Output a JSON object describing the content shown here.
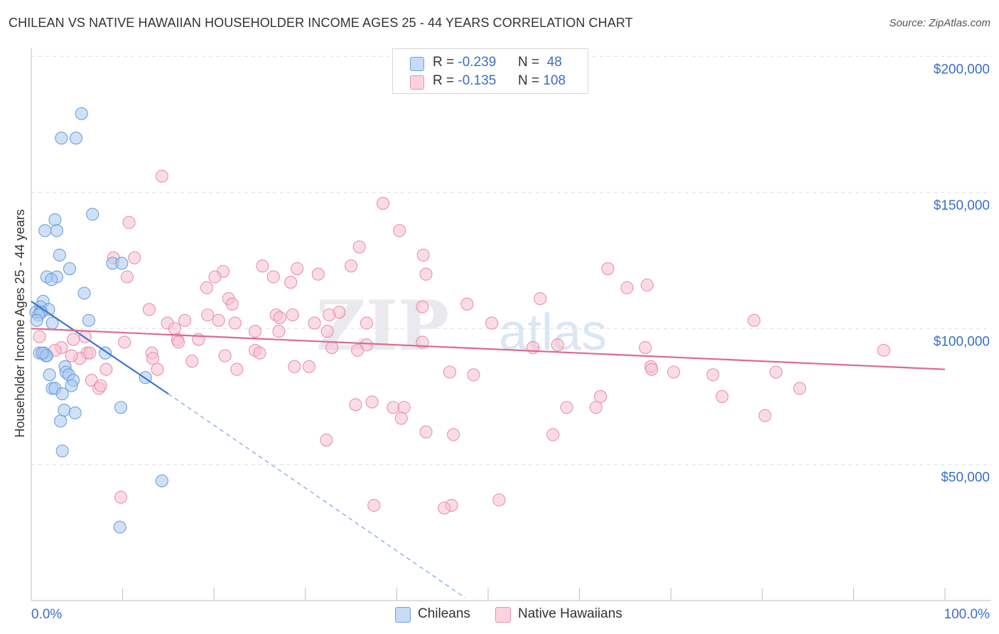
{
  "header": {
    "title": "CHILEAN VS NATIVE HAWAIIAN HOUSEHOLDER INCOME AGES 25 - 44 YEARS CORRELATION CHART",
    "source": "Source: ZipAtlas.com"
  },
  "watermark": {
    "text_zip": "ZIP",
    "text_atlas": "atlas"
  },
  "legend": {
    "rows": [
      {
        "r_label": "R =",
        "r_value": "-0.239",
        "n_label": "N =",
        "n_value": "48"
      },
      {
        "r_label": "R =",
        "r_value": "-0.135",
        "n_label": "N =",
        "n_value": "108"
      }
    ]
  },
  "bottom_legend": {
    "series1": "Chileans",
    "series2": "Native Hawaiians"
  },
  "colors": {
    "chileans_fill": "#a9c8f0",
    "chileans_stroke": "#6f9fdc",
    "chileans_line": "#3a74d0",
    "hawaiians_fill": "#f7c0d0",
    "hawaiians_stroke": "#e892ad",
    "hawaiians_line": "#e06890",
    "axis_label": "#3a6fc8"
  },
  "chart_data": {
    "type": "scatter",
    "title": "CHILEAN VS NATIVE HAWAIIAN HOUSEHOLDER INCOME AGES 25 - 44 YEARS CORRELATION CHART",
    "xlabel": "",
    "ylabel": "Householder Income Ages 25 - 44 years",
    "xlim": [
      0,
      100
    ],
    "ylim": [
      0,
      210000
    ],
    "x_tick_labels": [
      "0.0%",
      "100.0%"
    ],
    "y_ticks": [
      50000,
      100000,
      150000,
      200000
    ],
    "y_tick_labels": [
      "$50,000",
      "$100,000",
      "$150,000",
      "$200,000"
    ],
    "grid": true,
    "legend_position": "top-center",
    "series": [
      {
        "name": "Chileans",
        "r": -0.239,
        "n": 48,
        "trend": {
          "x_start": 0,
          "y_start": 110000,
          "x_solid_end": 15,
          "y_solid_end": 76000,
          "x_dash_end": 47.5,
          "y_dash_end": 1000
        },
        "points": [
          [
            5.5,
            179000
          ],
          [
            3.3,
            170000
          ],
          [
            4.9,
            170000
          ],
          [
            6.7,
            142000
          ],
          [
            2.6,
            140000
          ],
          [
            1.5,
            136000
          ],
          [
            2.8,
            136000
          ],
          [
            3.1,
            127000
          ],
          [
            8.9,
            124000
          ],
          [
            9.9,
            124000
          ],
          [
            4.2,
            122000
          ],
          [
            1.7,
            119000
          ],
          [
            2.8,
            119000
          ],
          [
            2.2,
            118000
          ],
          [
            5.8,
            113000
          ],
          [
            1.3,
            110000
          ],
          [
            1.0,
            108000
          ],
          [
            1.9,
            107000
          ],
          [
            0.5,
            106000
          ],
          [
            1.0,
            106000
          ],
          [
            1.1,
            106000
          ],
          [
            0.8,
            105000
          ],
          [
            0.6,
            103000
          ],
          [
            6.3,
            103000
          ],
          [
            2.3,
            102000
          ],
          [
            0.9,
            91000
          ],
          [
            1.4,
            91000
          ],
          [
            1.6,
            90000
          ],
          [
            8.1,
            91000
          ],
          [
            1.7,
            90000
          ],
          [
            1.2,
            91000
          ],
          [
            3.7,
            86000
          ],
          [
            3.8,
            84000
          ],
          [
            2.0,
            83000
          ],
          [
            4.1,
            83000
          ],
          [
            12.5,
            82000
          ],
          [
            4.6,
            81000
          ],
          [
            4.4,
            79000
          ],
          [
            2.3,
            78000
          ],
          [
            2.6,
            78000
          ],
          [
            3.4,
            76000
          ],
          [
            9.8,
            71000
          ],
          [
            3.6,
            70000
          ],
          [
            4.8,
            69000
          ],
          [
            3.2,
            66000
          ],
          [
            3.4,
            55000
          ],
          [
            14.3,
            44000
          ],
          [
            9.7,
            27000
          ]
        ]
      },
      {
        "name": "Native Hawaiians",
        "r": -0.135,
        "n": 108,
        "trend": {
          "x_start": 0,
          "y_start": 100000,
          "x_end": 100,
          "y_end": 85000
        },
        "points": [
          [
            14.3,
            156000
          ],
          [
            38.5,
            146000
          ],
          [
            10.7,
            139000
          ],
          [
            40.3,
            136000
          ],
          [
            35.9,
            130000
          ],
          [
            42.9,
            127000
          ],
          [
            9.0,
            126000
          ],
          [
            11.3,
            126000
          ],
          [
            25.3,
            123000
          ],
          [
            29.1,
            122000
          ],
          [
            35.0,
            123000
          ],
          [
            63.1,
            122000
          ],
          [
            21.0,
            121000
          ],
          [
            31.4,
            120000
          ],
          [
            43.2,
            120000
          ],
          [
            10.5,
            119000
          ],
          [
            20.1,
            119000
          ],
          [
            26.5,
            119000
          ],
          [
            28.4,
            117000
          ],
          [
            67.4,
            116000
          ],
          [
            19.2,
            115000
          ],
          [
            65.2,
            115000
          ],
          [
            21.6,
            111000
          ],
          [
            55.7,
            111000
          ],
          [
            47.7,
            109000
          ],
          [
            22.0,
            109000
          ],
          [
            42.8,
            108000
          ],
          [
            12.9,
            107000
          ],
          [
            33.7,
            106000
          ],
          [
            19.3,
            105000
          ],
          [
            26.8,
            105000
          ],
          [
            27.2,
            104000
          ],
          [
            28.6,
            105000
          ],
          [
            32.6,
            105000
          ],
          [
            16.8,
            103000
          ],
          [
            20.5,
            103000
          ],
          [
            14.9,
            102000
          ],
          [
            22.3,
            102000
          ],
          [
            31.0,
            102000
          ],
          [
            36.7,
            102000
          ],
          [
            50.4,
            102000
          ],
          [
            79.1,
            103000
          ],
          [
            15.7,
            100000
          ],
          [
            24.5,
            99000
          ],
          [
            27.1,
            99000
          ],
          [
            32.4,
            99000
          ],
          [
            16.0,
            96000
          ],
          [
            18.3,
            96000
          ],
          [
            42.8,
            95000
          ],
          [
            36.7,
            94000
          ],
          [
            57.6,
            94000
          ],
          [
            54.9,
            93000
          ],
          [
            67.2,
            93000
          ],
          [
            32.9,
            93000
          ],
          [
            35.7,
            92000
          ],
          [
            24.5,
            92000
          ],
          [
            25.0,
            91000
          ],
          [
            13.2,
            91000
          ],
          [
            16.1,
            95000
          ],
          [
            10.2,
            95000
          ],
          [
            93.3,
            92000
          ],
          [
            21.2,
            90000
          ],
          [
            13.3,
            89000
          ],
          [
            17.6,
            88000
          ],
          [
            28.8,
            86000
          ],
          [
            30.4,
            86000
          ],
          [
            8.2,
            85000
          ],
          [
            22.5,
            85000
          ],
          [
            13.8,
            85000
          ],
          [
            45.8,
            84000
          ],
          [
            48.4,
            83000
          ],
          [
            67.8,
            86000
          ],
          [
            70.3,
            84000
          ],
          [
            74.6,
            83000
          ],
          [
            67.9,
            85000
          ],
          [
            81.5,
            84000
          ],
          [
            6.6,
            81000
          ],
          [
            7.4,
            78000
          ],
          [
            7.6,
            79000
          ],
          [
            62.3,
            75000
          ],
          [
            37.3,
            73000
          ],
          [
            35.5,
            72000
          ],
          [
            39.6,
            71000
          ],
          [
            40.8,
            71000
          ],
          [
            61.8,
            71000
          ],
          [
            75.6,
            75000
          ],
          [
            84.1,
            78000
          ],
          [
            58.6,
            71000
          ],
          [
            46.2,
            61000
          ],
          [
            43.2,
            62000
          ],
          [
            57.1,
            61000
          ],
          [
            80.3,
            68000
          ],
          [
            9.8,
            38000
          ],
          [
            37.5,
            35000
          ],
          [
            46.0,
            35000
          ],
          [
            45.2,
            34000
          ],
          [
            51.2,
            37000
          ],
          [
            32.3,
            59000
          ],
          [
            40.5,
            67000
          ],
          [
            6.1,
            91000
          ],
          [
            6.4,
            91000
          ],
          [
            5.3,
            89000
          ],
          [
            4.6,
            96000
          ],
          [
            5.9,
            97000
          ],
          [
            4.4,
            90000
          ],
          [
            3.3,
            93000
          ],
          [
            2.6,
            92000
          ],
          [
            0.9,
            97000
          ]
        ]
      }
    ]
  }
}
